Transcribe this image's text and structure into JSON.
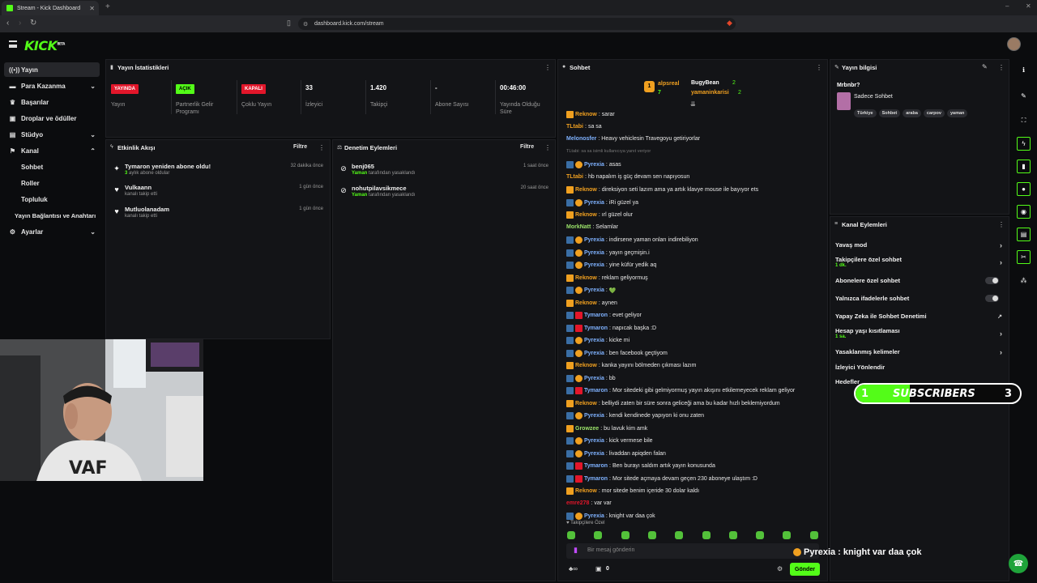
{
  "browser": {
    "tab_title": "Stream - Kick Dashboard",
    "url": "dashboard.kick.com/stream"
  },
  "app": {
    "logo": "KICK",
    "logo_sup": "BETA"
  },
  "sidebar": {
    "items": [
      {
        "label": "Yayın",
        "icon": "broadcast-icon"
      },
      {
        "label": "Para Kazanma",
        "icon": "money-icon"
      },
      {
        "label": "Başarılar",
        "icon": "trophy-icon"
      },
      {
        "label": "Droplar ve ödüller",
        "icon": "gift-icon"
      },
      {
        "label": "Stüdyo",
        "icon": "studio-icon"
      },
      {
        "label": "Kanal",
        "icon": "channel-icon"
      },
      {
        "label": "Ayarlar",
        "icon": "gear-icon"
      }
    ],
    "sub_items": [
      "Sohbet",
      "Roller",
      "Topluluk",
      "Yayın Bağlantısı ve Anahtarı"
    ]
  },
  "stats": {
    "title": "Yayın İstatistikleri",
    "items": [
      {
        "value": "YAYINDA",
        "label": "Yayın"
      },
      {
        "value": "AÇIK",
        "label": "Partnerlik Gelir Programı"
      },
      {
        "value": "KAPALI",
        "label": "Çoklu Yayın"
      },
      {
        "value": "33",
        "label": "İzleyici"
      },
      {
        "value": "1.420",
        "label": "Takipçi"
      },
      {
        "value": "-",
        "label": "Abone Sayısı"
      },
      {
        "value": "00:46:00",
        "label": "Yayında Olduğu Süre"
      }
    ]
  },
  "activity": {
    "title": "Etkinlik Akışı",
    "filter": "Filtre",
    "rows": [
      {
        "title": "Tymaron yeniden abone oldu!",
        "sub_prefix": "3",
        "sub": " aylık abone oldular",
        "time": "32 dakika önce",
        "icon": "star-icon"
      },
      {
        "title": "Vulkaann",
        "sub_prefix": "",
        "sub": "kanalı takip etti",
        "time": "1 gün önce",
        "icon": "heart-icon"
      },
      {
        "title": "Mutluolanadam",
        "sub_prefix": "",
        "sub": "kanalı takip etti",
        "time": "1 gün önce",
        "icon": "heart-icon"
      }
    ]
  },
  "moderation": {
    "title": "Denetim Eylemleri",
    "filter": "Filtre",
    "rows": [
      {
        "title": "benj065",
        "sub_prefix": "Yaman",
        "sub": " tarafından yasaklandı",
        "time": "1 saat önce"
      },
      {
        "title": "nohutpilavsikmece",
        "sub_prefix": "Yaman",
        "sub": " tarafından yasaklandı",
        "time": "20 saat önce"
      }
    ]
  },
  "chat": {
    "title": "Sohbet",
    "leaderboard": [
      {
        "name": "alpsreal",
        "value": "7"
      },
      {
        "name": "BugyBean",
        "value": "2"
      },
      {
        "name": "yamaninkarisi",
        "value": "2"
      }
    ],
    "messages": [
      {
        "user": "Reknow",
        "text": "sarar",
        "color": "#f0a020",
        "badge": "crown"
      },
      {
        "user": "TLtabi",
        "text": "sa sa",
        "color": "#f0a020",
        "badge": "none"
      },
      {
        "user": "Melonosfer",
        "text": "Heavy vehiclesin Travegoyu getiriyorlar",
        "color": "#7fb2ff",
        "badge": "none"
      },
      {
        "user": "TLtabi: sa sa isimli kullanıcıya yanıt veriyor",
        "text": "",
        "color": "#777777",
        "badge": "reply"
      },
      {
        "user": "Pyrexia",
        "text": "asas",
        "color": "#7fb2ff",
        "badge": "blue"
      },
      {
        "user": "TLtabi",
        "text": "hb napalım iş güç devam sen napıyosun",
        "color": "#f0a020",
        "badge": "none"
      },
      {
        "user": "Reknow",
        "text": "direksiyon seti lazım ama ya artık klavye mouse ile bayıyor ets",
        "color": "#f0a020",
        "badge": "crown"
      },
      {
        "user": "Pyrexia",
        "text": "iRi güzel ya",
        "color": "#7fb2ff",
        "badge": "blue"
      },
      {
        "user": "Reknow",
        "text": "ırl güzel olur",
        "color": "#f0a020",
        "badge": "crown"
      },
      {
        "user": "MorkNatt",
        "text": "Selamlar",
        "color": "#9be36a",
        "badge": "none"
      },
      {
        "user": "Pyrexia",
        "text": "indirsene yaman onları indirebiliyon",
        "color": "#7fb2ff",
        "badge": "blue"
      },
      {
        "user": "Pyrexia",
        "text": "yayın geçmişin.i",
        "color": "#7fb2ff",
        "badge": "blue"
      },
      {
        "user": "Pyrexia",
        "text": "yine küfür yedik aq",
        "color": "#7fb2ff",
        "badge": "blue"
      },
      {
        "user": "Reknow",
        "text": "reklam geliyormuş",
        "color": "#f0a020",
        "badge": "crown"
      },
      {
        "user": "Pyrexia",
        "text": "💚",
        "color": "#7fb2ff",
        "badge": "blue"
      },
      {
        "user": "Reknow",
        "text": "aynen",
        "color": "#f0a020",
        "badge": "crown"
      },
      {
        "user": "Tymaron",
        "text": "evet geliyor",
        "color": "#7fb2ff",
        "badge": "red"
      },
      {
        "user": "Tymaron",
        "text": "napıcak başka :D",
        "color": "#7fb2ff",
        "badge": "red"
      },
      {
        "user": "Pyrexia",
        "text": "kicke mi",
        "color": "#7fb2ff",
        "badge": "blue"
      },
      {
        "user": "Pyrexia",
        "text": "ben facebook geçtiyom",
        "color": "#7fb2ff",
        "badge": "blue"
      },
      {
        "user": "Reknow",
        "text": "kanka yayını bölmeden çıkması lazım",
        "color": "#f0a020",
        "badge": "crown"
      },
      {
        "user": "Pyrexia",
        "text": "bb",
        "color": "#7fb2ff",
        "badge": "blue"
      },
      {
        "user": "Tymaron",
        "text": "Mor sitedeki gibi gelmiyormuş yayın akışını etkilemeyecek reklam geliyor",
        "color": "#7fb2ff",
        "badge": "red"
      },
      {
        "user": "Reknow",
        "text": "belliydi zaten bir süre sonra geliceği ama bu kadar hızlı beklemiyordum",
        "color": "#f0a020",
        "badge": "crown"
      },
      {
        "user": "Pyrexia",
        "text": "kendi kendinede yapıyon ki onu zaten",
        "color": "#7fb2ff",
        "badge": "blue"
      },
      {
        "user": "Growzee",
        "text": "bu lavuk kim amk",
        "color": "#9be36a",
        "badge": "crown"
      },
      {
        "user": "Pyrexia",
        "text": "kick vermese bile",
        "color": "#7fb2ff",
        "badge": "blue"
      },
      {
        "user": "Pyrexia",
        "text": "livaddan apiqden falan",
        "color": "#7fb2ff",
        "badge": "blue"
      },
      {
        "user": "Tymaron",
        "text": "Ben burayı saldım artık yayın konusunda",
        "color": "#7fb2ff",
        "badge": "red"
      },
      {
        "user": "Tymaron",
        "text": "Mor sitede açmaya devam geçen 230 aboneye ulaştım :D",
        "color": "#7fb2ff",
        "badge": "red"
      },
      {
        "user": "Reknow",
        "text": "mor sitede benim içeride 30 dolar kaldı",
        "color": "#f0a020",
        "badge": "crown"
      },
      {
        "user": "emre278",
        "text": "var var",
        "color": "#e2162a",
        "badge": "none"
      },
      {
        "user": "Pyrexia",
        "text": "knight var daa çok",
        "color": "#7fb2ff",
        "badge": "blue"
      }
    ],
    "followers_only": "Takipçilere Özel",
    "input_placeholder": "Bir mesaj gönderin",
    "points": "0",
    "send": "Gönder"
  },
  "stream_info": {
    "title": "Yayın bilgisi",
    "stream_title": "Mrbnbr?",
    "category": "Sadece Sohbet",
    "tags": [
      "Türkiye",
      "Sohbet",
      "araba",
      "carpov",
      "yaman"
    ]
  },
  "channel_actions": {
    "title": "Kanal Eylemleri",
    "rows": [
      {
        "label": "Yavaş mod",
        "sub": "",
        "control": "chevron"
      },
      {
        "label": "Takipçilere özel sohbet",
        "sub": "1 dk.",
        "control": "chevron"
      },
      {
        "label": "Abonelere özel sohbet",
        "sub": "",
        "control": "toggle"
      },
      {
        "label": "Yalnızca ifadelerle sohbet",
        "sub": "",
        "control": "toggle"
      },
      {
        "label": "Yapay Zeka ile Sohbet Denetimi",
        "sub": "",
        "control": "external"
      },
      {
        "label": "Hesap yaşı kısıtlaması",
        "sub": "1 sa.",
        "control": "chevron"
      },
      {
        "label": "Yasaklanmış kelimeler",
        "sub": "",
        "control": "chevron"
      },
      {
        "label": "İzleyici Yönlendir",
        "sub": "",
        "control": "none"
      },
      {
        "label": "Hedefler",
        "sub": "",
        "control": "none"
      }
    ]
  },
  "overlay": {
    "subs_current": "1",
    "subs_label": "SUBSCRIBERS",
    "subs_goal": "3",
    "subs_progress": 0.33,
    "last_chat_user": "Pyrexia",
    "last_chat_text": " : knight var daa çok"
  },
  "colors": {
    "brand": "#53fc18",
    "live": "#e2162a",
    "panel": "#131417"
  }
}
